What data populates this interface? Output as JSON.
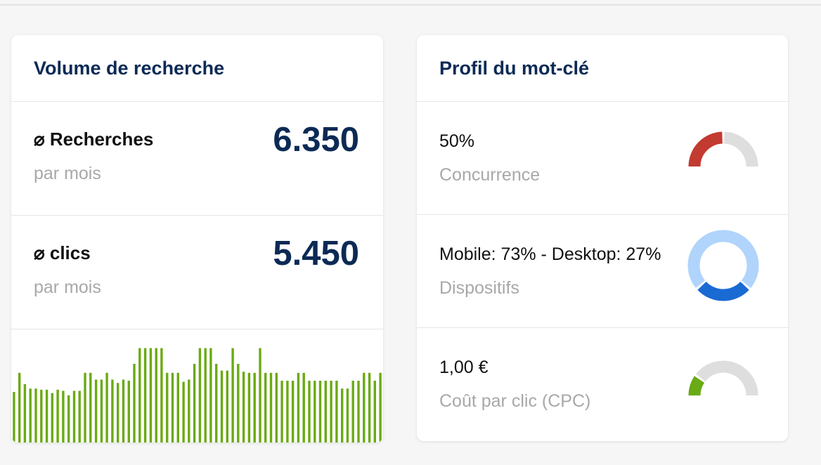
{
  "volume_card": {
    "title": "Volume de recherche",
    "searches": {
      "label": "⌀ Recherches",
      "sub": "par mois",
      "value": "6.350"
    },
    "clicks": {
      "label": "⌀ clics",
      "sub": "par mois",
      "value": "5.450"
    },
    "trend_color": "#6aaa14",
    "trend_values": [
      45,
      62,
      52,
      48,
      48,
      47,
      47,
      44,
      47,
      46,
      42,
      46,
      46,
      62,
      62,
      56,
      56,
      62,
      56,
      53,
      56,
      55,
      70,
      84,
      84,
      84,
      84,
      84,
      62,
      62,
      62,
      54,
      56,
      70,
      84,
      84,
      84,
      70,
      64,
      64,
      84,
      70,
      63,
      62,
      62,
      84,
      62,
      62,
      62,
      55,
      55,
      55,
      62,
      62,
      55,
      55,
      55,
      55,
      55,
      55,
      48,
      48,
      55,
      55,
      62,
      62,
      55,
      62
    ]
  },
  "profile_card": {
    "title": "Profil du mot-clé",
    "competition": {
      "value": "50%",
      "label": "Concurrence",
      "level": 0.5,
      "color": "#c23a30",
      "track_color": "#dedede"
    },
    "devices": {
      "value": "Mobile: 73% - Desktop: 27%",
      "label": "Dispositifs",
      "mobile_share": 0.73,
      "desktop_share": 0.27,
      "mobile_color": "#b0d4fb",
      "desktop_color": "#1a6ad4"
    },
    "cpc": {
      "value": "1,00 €",
      "label": "Coût par clic (CPC)",
      "level": 0.2,
      "color": "#6aaa14",
      "track_color": "#dedede"
    }
  }
}
